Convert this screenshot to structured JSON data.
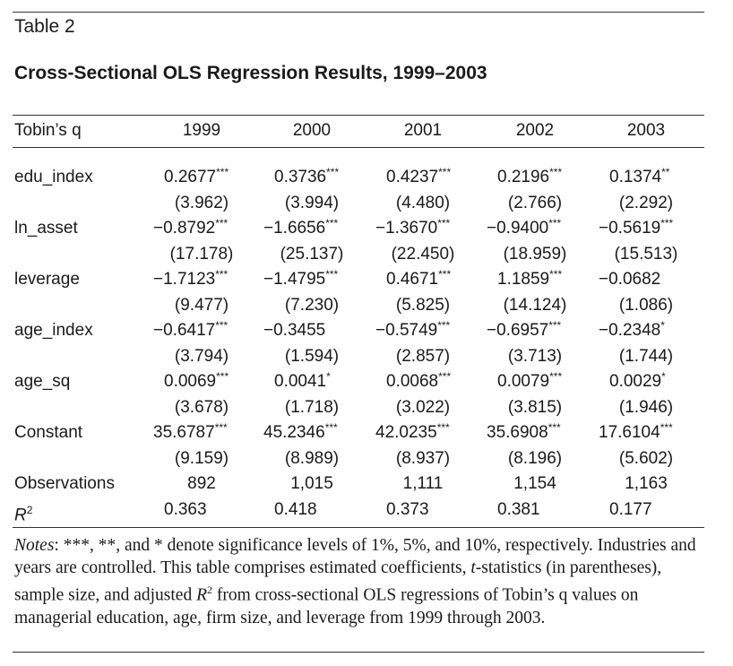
{
  "table_label": "Table 2",
  "table_title": "Cross-Sectional OLS Regression Results, 1999–2003",
  "stub_header": "Tobin’s q",
  "years": [
    "1999",
    "2000",
    "2001",
    "2002",
    "2003"
  ],
  "rows": [
    {
      "label": "edu_index",
      "coef": [
        {
          "v": "0.2677",
          "s": "***"
        },
        {
          "v": "0.3736",
          "s": "***"
        },
        {
          "v": "0.4237",
          "s": "***"
        },
        {
          "v": "0.2196",
          "s": "***"
        },
        {
          "v": "0.1374",
          "s": "**"
        }
      ],
      "tstat": [
        "(3.962)",
        "(3.994)",
        "(4.480)",
        "(2.766)",
        "(2.292)"
      ]
    },
    {
      "label": "ln_asset",
      "coef": [
        {
          "v": "−0.8792",
          "s": "***"
        },
        {
          "v": "−1.6656",
          "s": "***"
        },
        {
          "v": "−1.3670",
          "s": "***"
        },
        {
          "v": "−0.9400",
          "s": "***"
        },
        {
          "v": "−0.5619",
          "s": "***"
        }
      ],
      "tstat": [
        "(17.178)",
        "(25.137)",
        "(22.450)",
        "(18.959)",
        "(15.513)"
      ]
    },
    {
      "label": "leverage",
      "coef": [
        {
          "v": "−1.7123",
          "s": "***"
        },
        {
          "v": "−1.4795",
          "s": "***"
        },
        {
          "v": "0.4671",
          "s": "***"
        },
        {
          "v": "1.1859",
          "s": "***"
        },
        {
          "v": "−0.0682",
          "s": ""
        }
      ],
      "tstat": [
        "(9.477)",
        "(7.230)",
        "(5.825)",
        "(14.124)",
        "(1.086)"
      ]
    },
    {
      "label": "age_index",
      "coef": [
        {
          "v": "−0.6417",
          "s": "***"
        },
        {
          "v": "−0.3455",
          "s": ""
        },
        {
          "v": "−0.5749",
          "s": "***"
        },
        {
          "v": "−0.6957",
          "s": "***"
        },
        {
          "v": "−0.2348",
          "s": "*"
        }
      ],
      "tstat": [
        "(3.794)",
        "(1.594)",
        "(2.857)",
        "(3.713)",
        "(1.744)"
      ]
    },
    {
      "label": "age_sq",
      "coef": [
        {
          "v": "0.0069",
          "s": "***"
        },
        {
          "v": "0.0041",
          "s": "*"
        },
        {
          "v": "0.0068",
          "s": "***"
        },
        {
          "v": "0.0079",
          "s": "***"
        },
        {
          "v": "0.0029",
          "s": "*"
        }
      ],
      "tstat": [
        "(3.678)",
        "(1.718)",
        "(3.022)",
        "(3.815)",
        "(1.946)"
      ]
    },
    {
      "label": "Constant",
      "coef": [
        {
          "v": "35.6787",
          "s": "***"
        },
        {
          "v": "45.2346",
          "s": "***"
        },
        {
          "v": "42.0235",
          "s": "***"
        },
        {
          "v": "35.6908",
          "s": "***"
        },
        {
          "v": "17.6104",
          "s": "***"
        }
      ],
      "tstat": [
        "(9.159)",
        "(8.989)",
        "(8.937)",
        "(8.196)",
        "(5.602)"
      ]
    }
  ],
  "observations": {
    "label": "Observations",
    "values": [
      "892",
      "1,015",
      "1,111",
      "1,154",
      "1,163"
    ]
  },
  "r2": {
    "label": "R",
    "sup": "2",
    "values": [
      "0.363",
      "0.418",
      "0.373",
      "0.381",
      "0.177"
    ]
  },
  "notes": {
    "lead": "Notes",
    "text_1": ": ***, **, and * denote significance levels of 1%, 5%, and 10%, respectively. Industries and years are controlled. This table comprises estimated coefficients, ",
    "t_italic": "t",
    "text_2": "-statistics (in parentheses), sample size, and adjusted ",
    "r_italic": "R",
    "r_sup": "2",
    "text_3": " from cross-sectional OLS regressions of Tobin’s q values on managerial education, age, firm size, and leverage from 1999 through 2003."
  }
}
